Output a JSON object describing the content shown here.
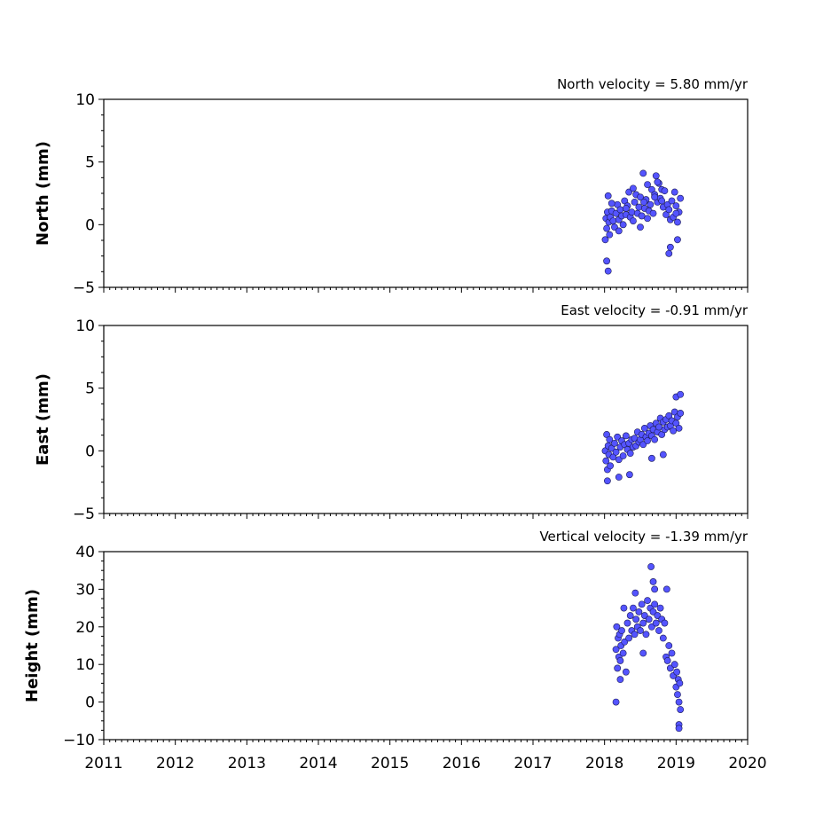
{
  "chart_data": [
    {
      "type": "scatter",
      "title": "North velocity = 5.80 mm/yr",
      "ylabel": "North (mm)",
      "xlim": [
        2011,
        2020
      ],
      "ylim": [
        -5,
        10
      ],
      "yticks": [
        -5,
        0,
        5,
        10
      ],
      "ytick_labels": [
        "−5",
        "0",
        "5",
        "10"
      ],
      "marker_color": "#5454ff",
      "series": [
        {
          "x": [
            2018.01,
            2018.02,
            2018.03,
            2018.04,
            2018.05,
            2018.06,
            2018.07,
            2018.08,
            2018.1,
            2018.12,
            2018.14,
            2018.16,
            2018.18,
            2018.2,
            2018.22,
            2018.24,
            2018.26,
            2018.28,
            2018.3,
            2018.32,
            2018.34,
            2018.36,
            2018.38,
            2018.4,
            2018.42,
            2018.44,
            2018.46,
            2018.48,
            2018.5,
            2018.52,
            2018.54,
            2018.56,
            2018.58,
            2018.6,
            2018.62,
            2018.64,
            2018.66,
            2018.68,
            2018.7,
            2018.72,
            2018.74,
            2018.76,
            2018.78,
            2018.8,
            2018.82,
            2018.84,
            2018.86,
            2018.88,
            2018.9,
            2018.92,
            2018.94,
            2018.96,
            2018.98,
            2019.0,
            2019.02,
            2019.04,
            2019.06,
            2018.1,
            2018.2,
            2018.3,
            2018.4,
            2018.5,
            2018.6,
            2018.7,
            2018.8,
            2018.9,
            2019.0,
            2018.03,
            2018.05,
            2018.55,
            2018.74,
            2018.92,
            2019.02
          ],
          "y": [
            -1.2,
            0.5,
            -0.3,
            1.0,
            2.3,
            0.2,
            -0.8,
            0.6,
            1.1,
            0.3,
            -0.2,
            0.9,
            1.6,
            0.4,
            1.2,
            0.7,
            0.0,
            1.9,
            0.8,
            1.5,
            2.6,
            0.6,
            1.0,
            0.3,
            1.8,
            2.4,
            0.9,
            1.4,
            2.2,
            0.7,
            4.1,
            1.3,
            2.0,
            3.2,
            1.1,
            1.6,
            2.8,
            0.9,
            2.4,
            3.9,
            1.8,
            3.3,
            2.1,
            2.8,
            1.4,
            2.7,
            0.8,
            1.6,
            1.2,
            0.4,
            1.9,
            0.6,
            2.6,
            1.5,
            0.2,
            1.0,
            2.1,
            1.7,
            -0.5,
            1.3,
            2.9,
            -0.2,
            0.5,
            2.2,
            1.9,
            -2.3,
            0.9,
            -2.9,
            -3.7,
            1.8,
            3.4,
            -1.8,
            -1.2
          ]
        }
      ]
    },
    {
      "type": "scatter",
      "title": "East velocity = -0.91 mm/yr",
      "ylabel": "East (mm)",
      "xlim": [
        2011,
        2020
      ],
      "ylim": [
        -5,
        10
      ],
      "yticks": [
        -5,
        0,
        5,
        10
      ],
      "ytick_labels": [
        "−5",
        "0",
        "5",
        "10"
      ],
      "marker_color": "#5454ff",
      "series": [
        {
          "x": [
            2018.01,
            2018.02,
            2018.03,
            2018.04,
            2018.05,
            2018.06,
            2018.07,
            2018.08,
            2018.1,
            2018.12,
            2018.14,
            2018.16,
            2018.18,
            2018.2,
            2018.22,
            2018.24,
            2018.26,
            2018.28,
            2018.3,
            2018.32,
            2018.34,
            2018.36,
            2018.38,
            2018.4,
            2018.42,
            2018.44,
            2018.46,
            2018.48,
            2018.5,
            2018.52,
            2018.54,
            2018.56,
            2018.58,
            2018.6,
            2018.62,
            2018.64,
            2018.66,
            2018.68,
            2018.7,
            2018.72,
            2018.74,
            2018.76,
            2018.78,
            2018.8,
            2018.82,
            2018.84,
            2018.86,
            2018.88,
            2018.9,
            2018.92,
            2018.94,
            2018.96,
            2018.98,
            2019.0,
            2019.02,
            2019.04,
            2019.06,
            2018.04,
            2018.2,
            2018.35,
            2018.66,
            2018.82,
            2019.0,
            2019.06
          ],
          "y": [
            0.0,
            -0.8,
            1.3,
            -1.5,
            0.4,
            -0.3,
            0.9,
            -1.2,
            0.2,
            -0.5,
            0.6,
            -0.1,
            1.1,
            -0.7,
            0.3,
            0.8,
            -0.4,
            0.5,
            1.2,
            0.1,
            0.6,
            -0.2,
            0.9,
            0.3,
            1.0,
            0.4,
            1.5,
            0.7,
            0.9,
            1.3,
            0.5,
            1.8,
            1.1,
            0.8,
            1.4,
            2.0,
            1.2,
            1.7,
            0.9,
            2.2,
            1.5,
            1.9,
            2.6,
            1.3,
            2.3,
            1.7,
            2.5,
            1.9,
            2.8,
            2.0,
            2.4,
            1.6,
            3.1,
            2.2,
            2.7,
            1.8,
            3.0,
            -2.4,
            -2.1,
            -1.9,
            -0.6,
            -0.3,
            4.3,
            4.5
          ]
        }
      ]
    },
    {
      "type": "scatter",
      "title": "Vertical velocity = -1.39 mm/yr",
      "ylabel": "Height (mm)",
      "xlabel": "",
      "xlim": [
        2011,
        2020
      ],
      "ylim": [
        -10,
        40
      ],
      "yticks": [
        -10,
        0,
        10,
        20,
        30,
        40
      ],
      "ytick_labels": [
        "−10",
        "0",
        "10",
        "20",
        "30",
        "40"
      ],
      "xticks": [
        2011,
        2012,
        2013,
        2014,
        2015,
        2016,
        2017,
        2018,
        2019,
        2020
      ],
      "xtick_labels": [
        "2011",
        "2012",
        "2013",
        "2014",
        "2015",
        "2016",
        "2017",
        "2018",
        "2019",
        "2020"
      ],
      "marker_color": "#5454ff",
      "series": [
        {
          "x": [
            2018.16,
            2018.17,
            2018.18,
            2018.19,
            2018.2,
            2018.21,
            2018.22,
            2018.23,
            2018.24,
            2018.26,
            2018.28,
            2018.3,
            2018.32,
            2018.34,
            2018.36,
            2018.38,
            2018.4,
            2018.42,
            2018.44,
            2018.46,
            2018.48,
            2018.5,
            2018.52,
            2018.54,
            2018.56,
            2018.58,
            2018.6,
            2018.62,
            2018.64,
            2018.66,
            2018.68,
            2018.7,
            2018.72,
            2018.74,
            2018.76,
            2018.78,
            2018.8,
            2018.82,
            2018.84,
            2018.86,
            2018.88,
            2018.9,
            2018.92,
            2018.94,
            2018.96,
            2018.98,
            2019.0,
            2019.01,
            2019.02,
            2019.03,
            2019.04,
            2019.05,
            2019.06,
            2018.16,
            2018.22,
            2018.27,
            2018.43,
            2018.54,
            2018.65,
            2018.68,
            2018.7,
            2018.87,
            2019.04,
            2019.04
          ],
          "y": [
            14,
            20,
            9,
            17,
            12,
            18,
            11,
            15,
            19,
            13,
            16,
            8,
            21,
            17,
            23,
            19,
            25,
            18,
            22,
            20,
            24,
            19,
            26,
            21,
            23,
            18,
            27,
            22,
            25,
            20,
            24,
            26,
            21,
            23,
            19,
            25,
            22,
            17,
            21,
            12,
            11,
            15,
            9,
            13,
            7,
            10,
            4,
            8,
            2,
            6,
            0,
            5,
            -2,
            0,
            6,
            25,
            29,
            13,
            36,
            32,
            30,
            30,
            -6,
            -7
          ]
        }
      ]
    }
  ]
}
